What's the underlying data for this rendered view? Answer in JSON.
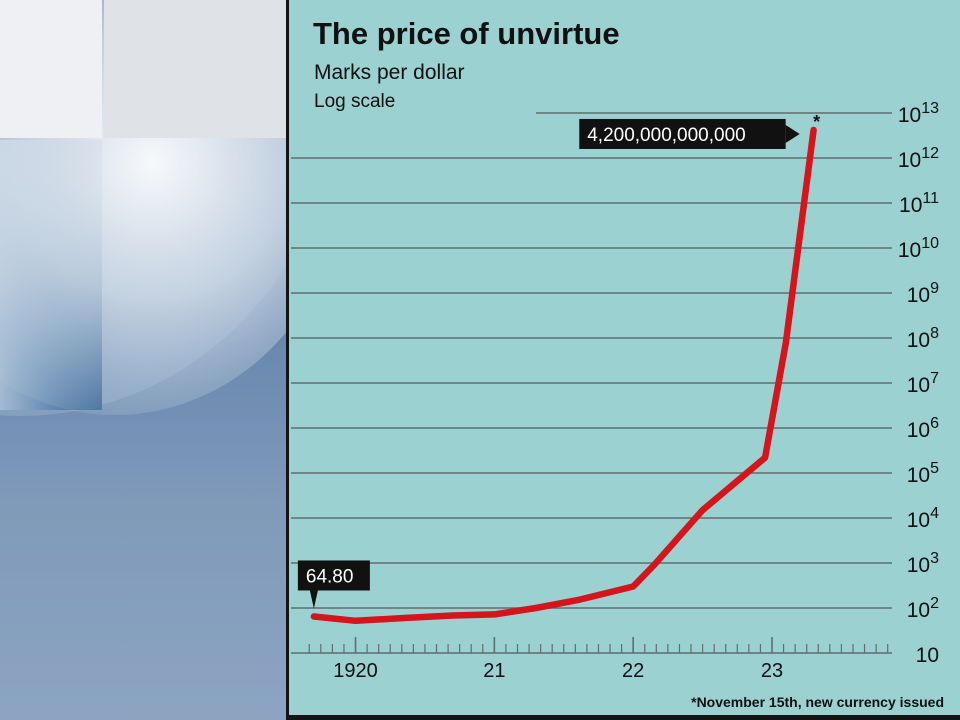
{
  "chart_data": {
    "type": "line",
    "title": "The price of unvirtue",
    "subtitle": "Marks per dollar",
    "scale_note": "Log scale",
    "y_scale": "log",
    "ylim": [
      10,
      10000000000000
    ],
    "xlim": [
      1919.6,
      1923.85
    ],
    "y_ticks": [
      {
        "value": 10,
        "base": "10",
        "exp": ""
      },
      {
        "value": 100,
        "base": "10",
        "exp": "2"
      },
      {
        "value": 1000,
        "base": "10",
        "exp": "3"
      },
      {
        "value": 10000,
        "base": "10",
        "exp": "4"
      },
      {
        "value": 100000,
        "base": "10",
        "exp": "5"
      },
      {
        "value": 1000000,
        "base": "10",
        "exp": "6"
      },
      {
        "value": 10000000,
        "base": "10",
        "exp": "7"
      },
      {
        "value": 100000000,
        "base": "10",
        "exp": "8"
      },
      {
        "value": 1000000000,
        "base": "10",
        "exp": "9"
      },
      {
        "value": 10000000000,
        "base": "10",
        "exp": "10"
      },
      {
        "value": 100000000000,
        "base": "10",
        "exp": "11"
      },
      {
        "value": 1000000000000,
        "base": "10",
        "exp": "12"
      },
      {
        "value": 10000000000000,
        "base": "10",
        "exp": "13"
      }
    ],
    "x_ticks": [
      {
        "value": 1920.0,
        "label": "1920"
      },
      {
        "value": 1921.0,
        "label": "21"
      },
      {
        "value": 1922.0,
        "label": "22"
      },
      {
        "value": 1923.0,
        "label": "23"
      }
    ],
    "series": [
      {
        "color": "#d5141b",
        "points": [
          {
            "x": 1919.7,
            "y": 64.8
          },
          {
            "x": 1920.0,
            "y": 52
          },
          {
            "x": 1920.35,
            "y": 60
          },
          {
            "x": 1920.7,
            "y": 68
          },
          {
            "x": 1921.0,
            "y": 72
          },
          {
            "x": 1921.3,
            "y": 100
          },
          {
            "x": 1921.6,
            "y": 150
          },
          {
            "x": 1922.0,
            "y": 300
          },
          {
            "x": 1922.15,
            "y": 900
          },
          {
            "x": 1922.5,
            "y": 15000
          },
          {
            "x": 1922.95,
            "y": 220000
          },
          {
            "x": 1923.1,
            "y": 80000000
          },
          {
            "x": 1923.3,
            "y": 4200000000000
          }
        ]
      }
    ],
    "annotations": [
      {
        "label": "64.80",
        "x": 1919.7,
        "y": 64.8,
        "side": "above"
      },
      {
        "label": "4,200,000,000,000",
        "x": 1923.3,
        "y": 4200000000000,
        "side": "left",
        "marker": "*"
      }
    ],
    "footnote": "*November 15th, new currency issued",
    "grid": true,
    "colors": {
      "background": "#9bd1d1",
      "line": "#d5141b",
      "grid": "#5f6e6e",
      "label_box": "#111111"
    }
  }
}
